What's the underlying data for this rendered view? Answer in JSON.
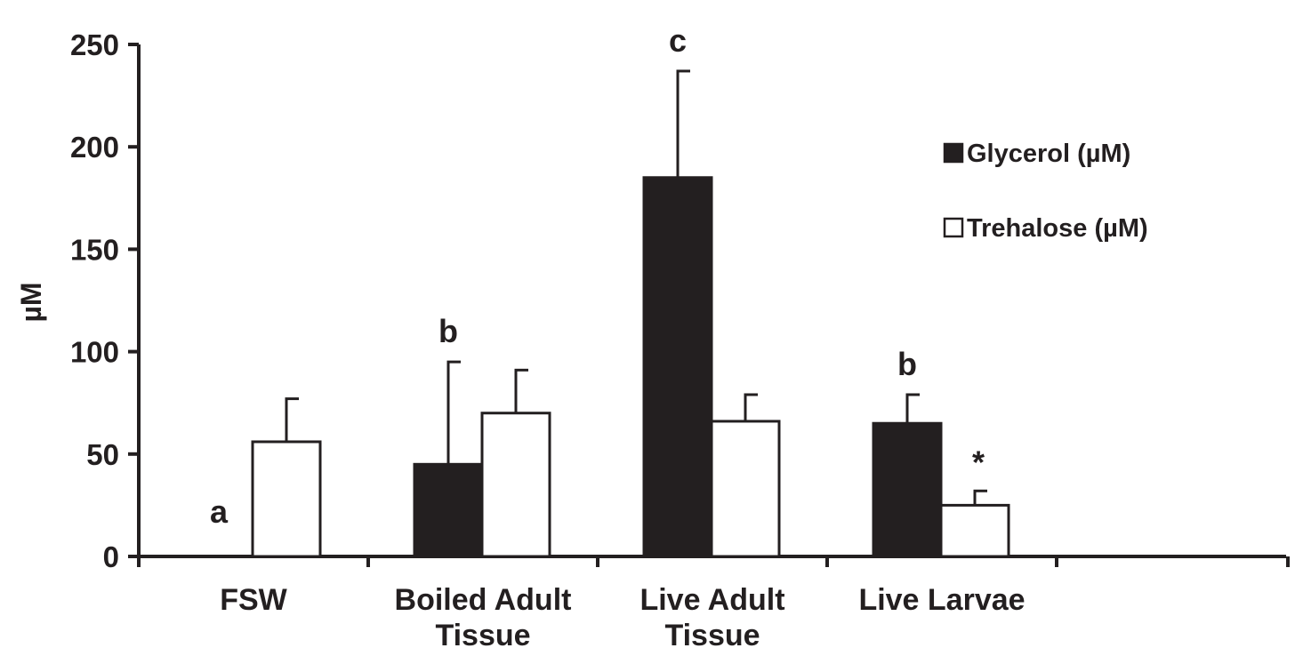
{
  "chart_data": {
    "type": "bar",
    "categories": [
      [
        "FSW"
      ],
      [
        "Boiled Adult",
        "Tissue"
      ],
      [
        "Live Adult",
        "Tissue"
      ],
      [
        "Live Larvae"
      ]
    ],
    "series": [
      {
        "name": "Glycerol (µM)",
        "color": "#231f20",
        "values": [
          0,
          45,
          185,
          65
        ],
        "errors": [
          0,
          50,
          52,
          14
        ],
        "annotations": [
          "a",
          "b",
          "c",
          "b"
        ]
      },
      {
        "name": "Trehalose (µM)",
        "color": "#ffffff",
        "values": [
          56,
          70,
          66,
          25
        ],
        "errors": [
          21,
          21,
          13,
          7
        ],
        "annotations": [
          "",
          "",
          "",
          "*"
        ]
      }
    ],
    "ylabel": "µM",
    "xlabel": "",
    "title": "",
    "ylim": [
      0,
      250
    ],
    "yticks": [
      0,
      50,
      100,
      150,
      200,
      250
    ],
    "legend": "right",
    "grid": false
  }
}
